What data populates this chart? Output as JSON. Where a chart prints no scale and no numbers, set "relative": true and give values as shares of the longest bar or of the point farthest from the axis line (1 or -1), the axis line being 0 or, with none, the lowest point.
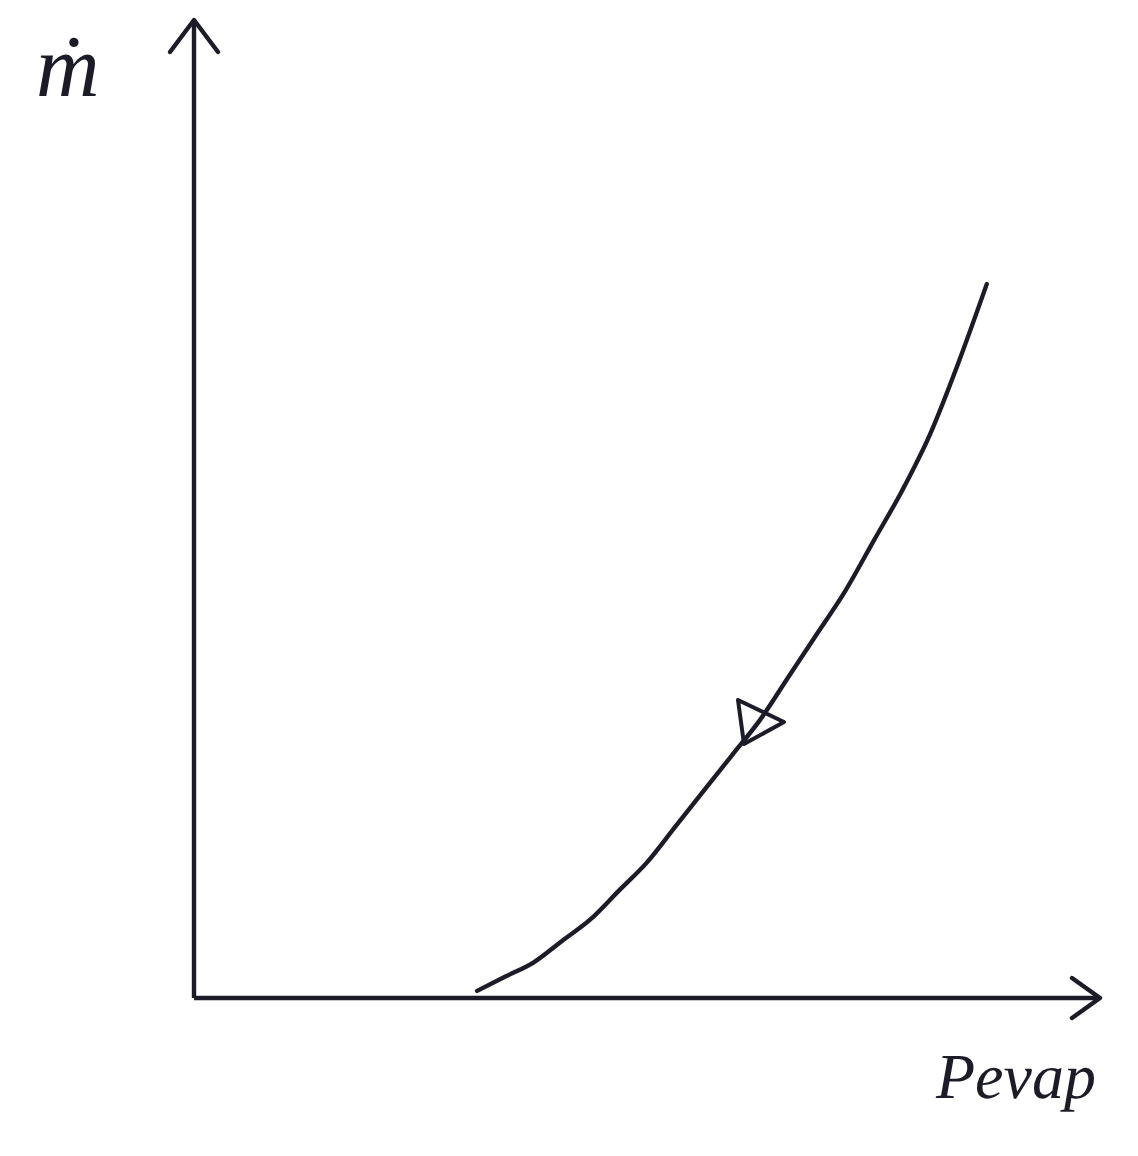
{
  "chart_data": {
    "type": "line",
    "xlabel": "Pevap",
    "ylabel": "ṁ",
    "relative": true,
    "categories": [
      null,
      null,
      null,
      null,
      null,
      null,
      null,
      null,
      null,
      null,
      null,
      null,
      null,
      null,
      null,
      null,
      null,
      null,
      null,
      null,
      null,
      null,
      null,
      null,
      null,
      null,
      null,
      null,
      null,
      null,
      null,
      null,
      null
    ],
    "values": [
      null,
      null,
      null,
      null,
      null,
      null,
      null,
      null,
      null,
      null,
      0.01,
      0.03,
      0.05,
      0.08,
      0.11,
      0.15,
      0.19,
      0.24,
      0.29,
      0.34,
      0.39,
      0.45,
      0.51,
      0.57,
      0.64,
      0.71,
      0.79,
      0.89,
      1,
      null,
      null,
      null,
      null
    ],
    "color": "#1c1c28"
  }
}
